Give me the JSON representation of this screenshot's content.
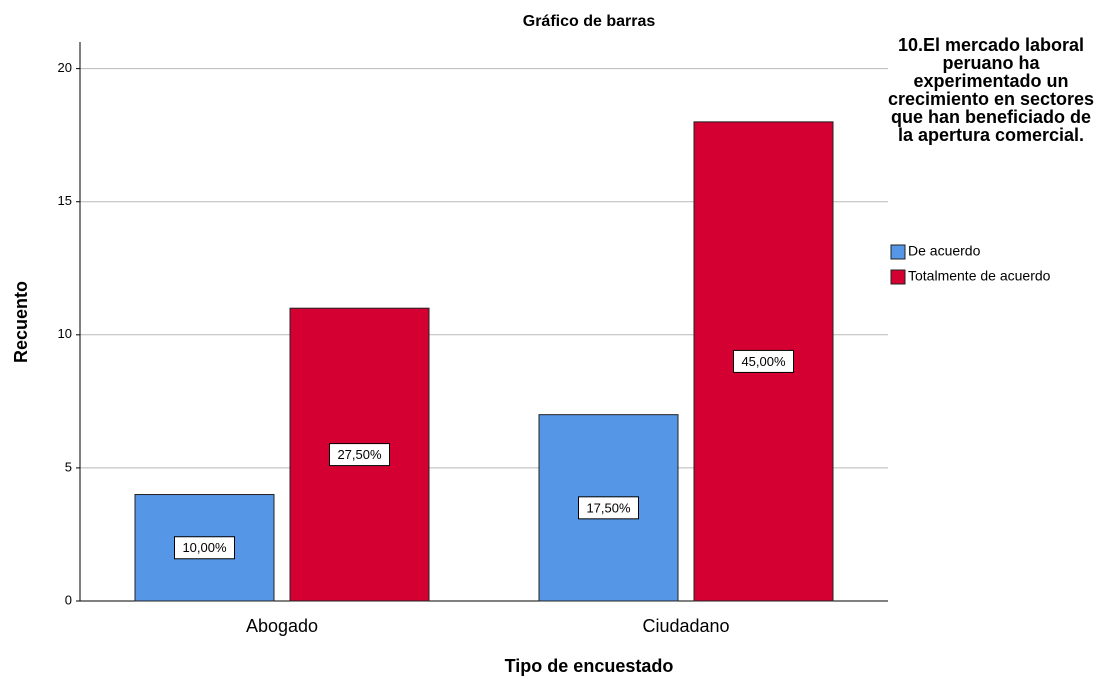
{
  "chart_data": {
    "type": "bar",
    "title": "Gráfico de barras",
    "x_label": "Tipo de encuestado",
    "y_label": "Recuento",
    "legend_title": "10.El mercado laboral peruano ha experimentado un crecimiento en sectores que han beneficiado de la apertura comercial.",
    "categories": [
      "Abogado",
      "Ciudadano"
    ],
    "series": [
      {
        "name": "De acuerdo",
        "color": "#5596e6",
        "values": [
          4,
          7
        ],
        "percentages": [
          10.0,
          17.5
        ],
        "percentage_labels": [
          "10,00%",
          "17,50%"
        ]
      },
      {
        "name": "Totalmente de acuerdo",
        "color": "#d30031",
        "values": [
          11,
          18
        ],
        "percentages": [
          27.5,
          45.0
        ],
        "percentage_labels": [
          "27,50%",
          "45,00%"
        ]
      }
    ],
    "ylim": [
      0,
      21
    ],
    "yticks": [
      0,
      5,
      10,
      15,
      20
    ],
    "grid": true,
    "legend": "right"
  }
}
